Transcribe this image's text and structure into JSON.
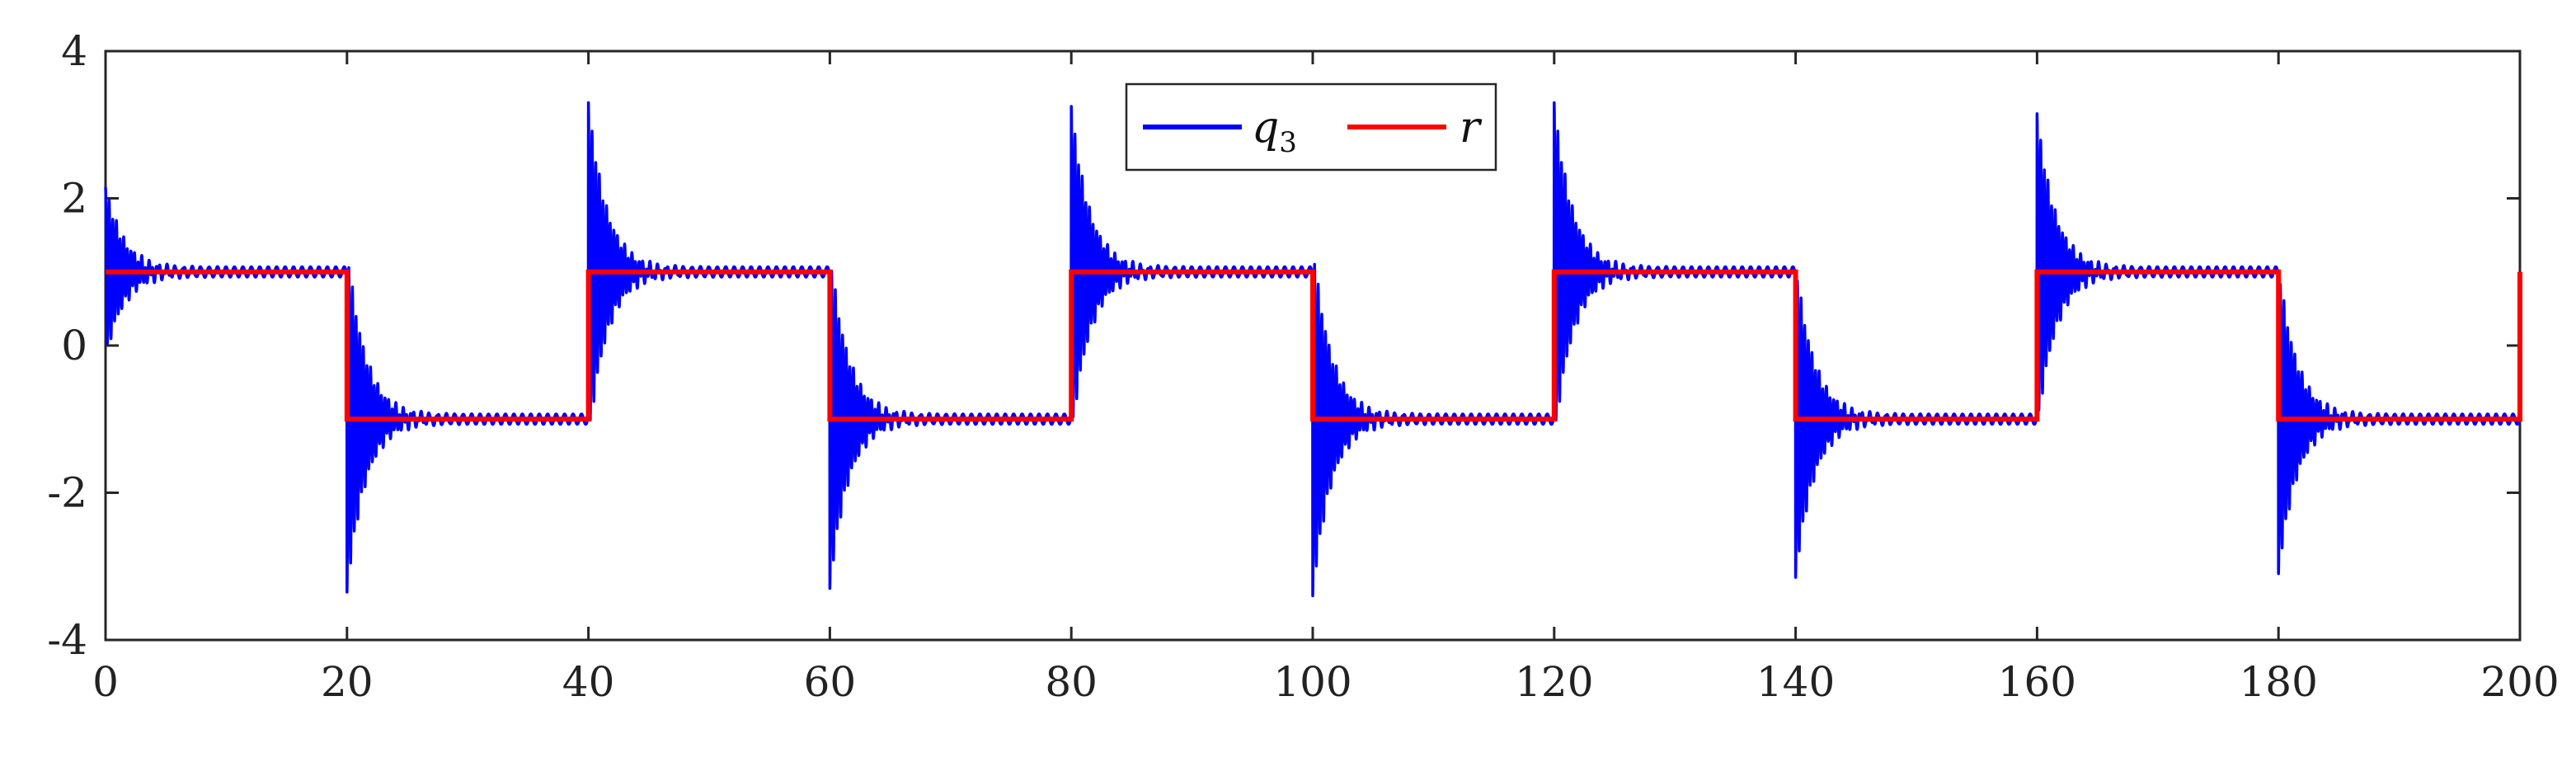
{
  "chart_data": {
    "type": "line",
    "title": "",
    "xlabel": "",
    "ylabel": "",
    "xlim": [
      0,
      200
    ],
    "ylim": [
      -4,
      4
    ],
    "xticks": [
      0,
      20,
      40,
      60,
      80,
      100,
      120,
      140,
      160,
      180,
      200
    ],
    "yticks": [
      4,
      2,
      0,
      -2,
      -4
    ],
    "xtick_labels": [
      "0",
      "20",
      "40",
      "60",
      "80",
      "100",
      "120",
      "140",
      "160",
      "180",
      "200"
    ],
    "ytick_labels": [
      "4",
      "2",
      "0",
      "-2",
      "-4"
    ],
    "grid": false,
    "legend_position": "top-center",
    "series": [
      {
        "name": "q3",
        "label_main": "q",
        "label_sub": "3",
        "color": "#0000ff",
        "style": "damped oscillation after each switch of r",
        "x": [
          0,
          0.2,
          0.5,
          1.0,
          2.0,
          4.0,
          20,
          20.15,
          20.5,
          21.0,
          22.0,
          24.0,
          40,
          40.15,
          40.5,
          41.0,
          42.0,
          44.0,
          60,
          60.15,
          60.5,
          61.0,
          62.0,
          64.0,
          80,
          80.15,
          80.5,
          81.0,
          82.0,
          84.0,
          100,
          100.15,
          100.5,
          101.0,
          102.0,
          104.0,
          120,
          120.15,
          120.5,
          121.0,
          122.0,
          124.0,
          140,
          140.15,
          140.5,
          141.0,
          142.0,
          144.0,
          160,
          160.15,
          160.5,
          161.0,
          162.0,
          164.0,
          180,
          180.15,
          180.5,
          181.0,
          182.0,
          184.0,
          200
        ],
        "y": [
          0.2,
          2.15,
          0.4,
          1.4,
          1.1,
          1.0,
          1.0,
          -3.35,
          0.5,
          -1.9,
          -0.8,
          -1.0,
          -1.0,
          3.3,
          -0.5,
          1.9,
          0.8,
          1.0,
          1.0,
          -3.3,
          0.5,
          -1.9,
          -0.8,
          -1.0,
          -1.0,
          3.25,
          -0.5,
          1.9,
          0.8,
          1.0,
          1.0,
          -3.4,
          0.5,
          -1.8,
          -0.8,
          -1.0,
          -1.0,
          3.3,
          -0.5,
          1.9,
          0.8,
          1.0,
          1.0,
          -3.15,
          0.5,
          -1.9,
          -0.8,
          -1.0,
          -1.0,
          3.15,
          -0.5,
          1.9,
          0.8,
          1.0,
          1.0,
          -3.1,
          0.5,
          -1.9,
          -0.8,
          -1.0,
          -1.0
        ]
      },
      {
        "name": "r",
        "color": "#ff0000",
        "style": "square wave",
        "x": [
          0,
          20,
          20,
          40,
          40,
          60,
          60,
          80,
          80,
          100,
          100,
          120,
          120,
          140,
          140,
          160,
          160,
          180,
          180,
          200,
          200
        ],
        "y": [
          1,
          1,
          -1,
          -1,
          1,
          1,
          -1,
          -1,
          1,
          1,
          -1,
          -1,
          1,
          1,
          -1,
          -1,
          1,
          1,
          -1,
          -1,
          1
        ]
      }
    ]
  }
}
